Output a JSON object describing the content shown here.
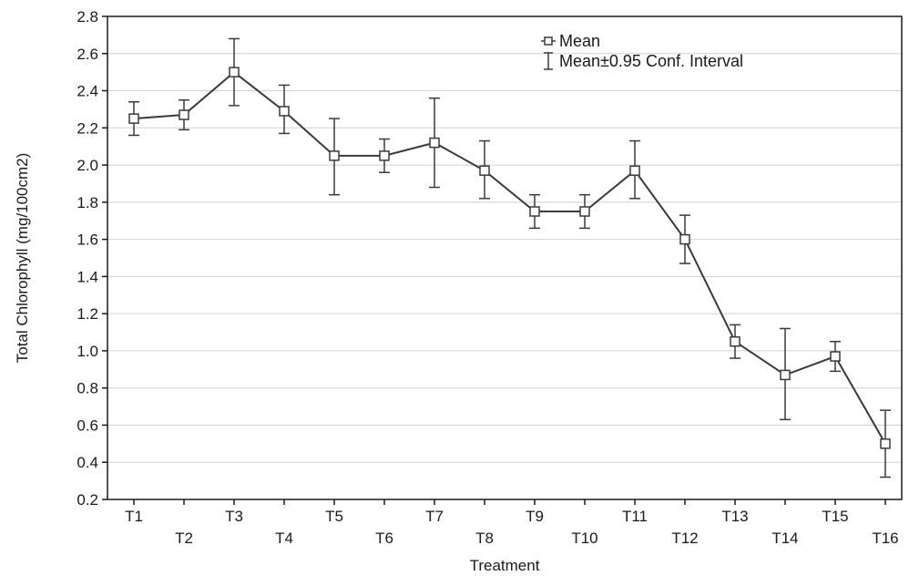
{
  "chart_data": {
    "type": "line",
    "xlabel": "Treatment",
    "ylabel": "Total Chlorophyll (mg/100cm2)",
    "categories": [
      "T1",
      "T2",
      "T3",
      "T4",
      "T5",
      "T6",
      "T7",
      "T8",
      "T9",
      "T10",
      "T11",
      "T12",
      "T13",
      "T14",
      "T15",
      "T16"
    ],
    "series": [
      {
        "name": "Mean",
        "values": [
          2.25,
          2.27,
          2.5,
          2.29,
          2.05,
          2.05,
          2.12,
          1.97,
          1.75,
          1.75,
          1.97,
          1.6,
          1.05,
          0.87,
          0.97,
          0.5
        ],
        "ci_lower": [
          2.16,
          2.19,
          2.32,
          2.17,
          1.84,
          1.96,
          1.88,
          1.82,
          1.66,
          1.66,
          1.82,
          1.47,
          0.96,
          0.63,
          0.89,
          0.32
        ],
        "ci_upper": [
          2.34,
          2.35,
          2.68,
          2.43,
          2.25,
          2.14,
          2.36,
          2.13,
          1.84,
          1.84,
          2.13,
          1.73,
          1.14,
          1.12,
          1.05,
          0.68
        ]
      }
    ],
    "legend": {
      "position": "top-right",
      "entries": [
        "Mean",
        "Mean±0.95 Conf. Interval"
      ]
    },
    "ylim": [
      0.2,
      2.8
    ],
    "yticks": [
      "0.2",
      "0.4",
      "0.6",
      "0.8",
      "1.0",
      "1.2",
      "1.4",
      "1.6",
      "1.8",
      "2.0",
      "2.2",
      "2.4",
      "2.6",
      "2.8"
    ],
    "grid": "horizontal",
    "colors": {
      "line": "#3a3a3a",
      "grid": "#d0d0d0",
      "frame": "#1a1a1a"
    }
  }
}
